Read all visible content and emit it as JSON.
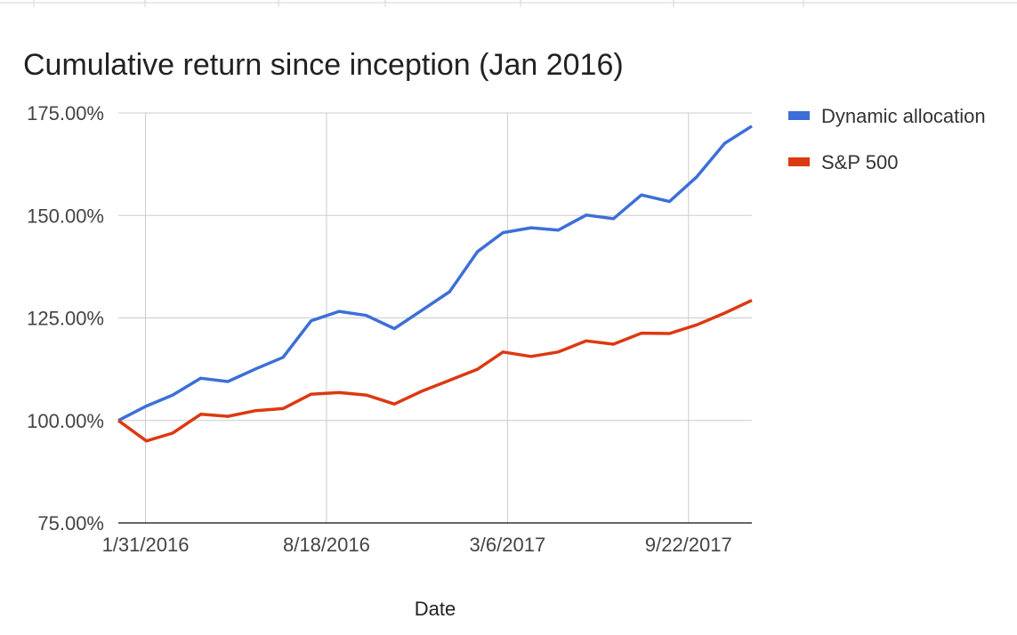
{
  "chart_data": {
    "type": "line",
    "title": "Cumulative return since inception (Jan 2016)",
    "xlabel": "Date",
    "ylabel": "",
    "ylim": [
      75,
      175
    ],
    "y_ticks": [
      75,
      100,
      125,
      150,
      175
    ],
    "y_tick_labels": [
      "75.00%",
      "100.00%",
      "125.00%",
      "150.00%",
      "175.00%"
    ],
    "x_ticks": [
      "2016-01-31",
      "2016-08-18",
      "2017-03-06",
      "2017-09-22"
    ],
    "x_tick_labels": [
      "1/31/2016",
      "8/18/2016",
      "3/6/2017",
      "9/22/2017"
    ],
    "grid": true,
    "legend_position": "right",
    "x": [
      "2016-01-01",
      "2016-02-01",
      "2016-03-01",
      "2016-04-01",
      "2016-05-01",
      "2016-06-01",
      "2016-07-01",
      "2016-08-01",
      "2016-09-01",
      "2016-10-01",
      "2016-11-01",
      "2016-12-01",
      "2017-01-01",
      "2017-02-01",
      "2017-03-01",
      "2017-04-01",
      "2017-05-01",
      "2017-06-01",
      "2017-07-01",
      "2017-08-01",
      "2017-09-01",
      "2017-10-01",
      "2017-11-01",
      "2017-12-01"
    ],
    "series": [
      {
        "name": "Dynamic allocation",
        "color": "#3c6fd8",
        "values": [
          100.0,
          103.5,
          106.2,
          110.3,
          109.5,
          112.6,
          115.4,
          124.3,
          126.6,
          125.6,
          122.4,
          126.8,
          131.4,
          141.2,
          145.8,
          147.0,
          146.4,
          150.1,
          149.2,
          155.0,
          153.4,
          159.4,
          167.6,
          171.8
        ]
      },
      {
        "name": "S&P 500",
        "color": "#dc3912",
        "values": [
          100.0,
          95.0,
          96.9,
          101.5,
          101.0,
          102.4,
          102.9,
          106.4,
          106.8,
          106.2,
          104.0,
          107.1,
          109.8,
          112.5,
          116.7,
          115.6,
          116.7,
          119.4,
          118.6,
          121.3,
          121.2,
          123.3,
          126.2,
          129.3
        ]
      }
    ]
  }
}
